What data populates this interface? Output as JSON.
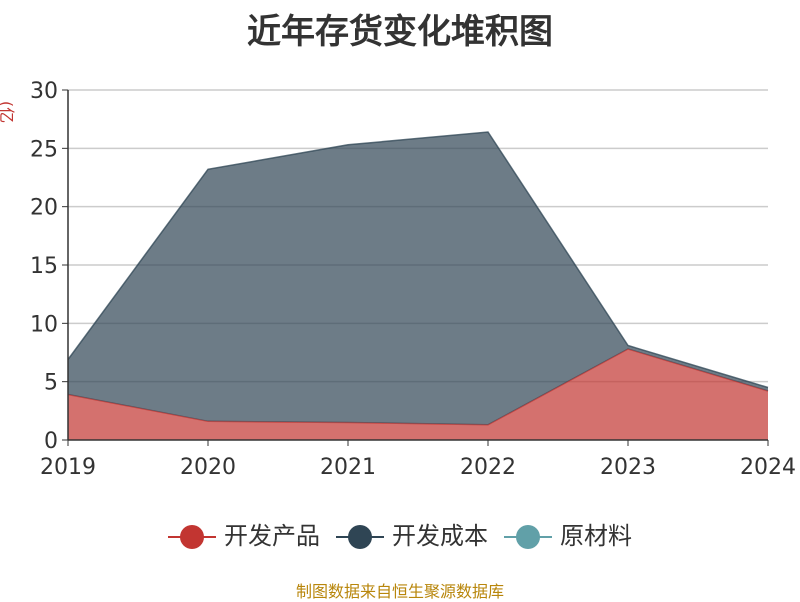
{
  "title": "近年存货变化堆积图",
  "source_text": "制图数据来自恒生聚源数据库",
  "chart_data": {
    "type": "area",
    "stacked": true,
    "title": "近年存货变化堆积图",
    "ylabel": "亿元",
    "xlabel": "",
    "x": [
      "2019",
      "2020",
      "2021",
      "2022",
      "2023",
      "2024"
    ],
    "ylim": [
      0,
      30
    ],
    "yticks": [
      0,
      5,
      10,
      15,
      20,
      25,
      30
    ],
    "grid": true,
    "legend_position": "bottom",
    "series": [
      {
        "name": "开发产品",
        "color": "#c23531",
        "values": [
          3.9,
          1.6,
          1.5,
          1.3,
          7.8,
          4.2
        ]
      },
      {
        "name": "开发成本",
        "color": "#2f4554",
        "values": [
          3.0,
          21.6,
          23.8,
          25.1,
          0.3,
          0.3
        ]
      },
      {
        "name": "原材料",
        "color": "#61a0a8",
        "values": [
          0,
          0,
          0,
          0,
          0,
          0
        ]
      }
    ]
  }
}
